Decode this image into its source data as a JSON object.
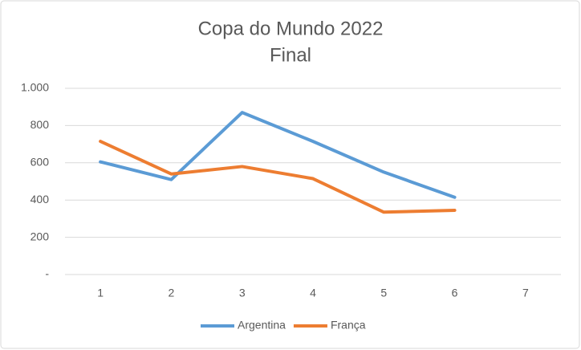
{
  "chart_data": {
    "type": "line",
    "title": "Copa do Mundo 2022",
    "subtitle": "Final",
    "categories": [
      "1",
      "2",
      "3",
      "4",
      "5",
      "6",
      "7"
    ],
    "series": [
      {
        "name": "Argentina",
        "color": "#5b9bd5",
        "values": [
          605,
          510,
          870,
          715,
          550,
          415,
          null
        ]
      },
      {
        "name": "França",
        "color": "#ed7d31",
        "values": [
          715,
          540,
          580,
          515,
          335,
          345,
          null
        ]
      }
    ],
    "ylim": [
      0,
      1000
    ],
    "yticks": [
      {
        "value": 0,
        "label": "-"
      },
      200,
      400,
      600,
      800,
      {
        "value": 1000,
        "label": "1.000"
      }
    ],
    "grid": true,
    "legend": "bottom"
  }
}
